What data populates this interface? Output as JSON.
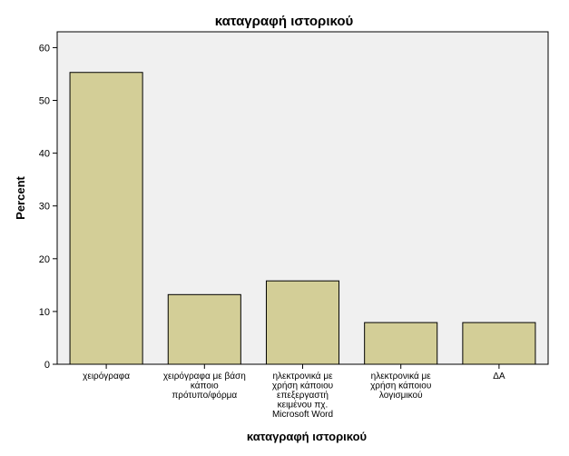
{
  "chart_data": {
    "type": "bar",
    "title": "καταγραφή ιστορικού",
    "xlabel": "καταγραφή ιστορικού",
    "ylabel": "Percent",
    "ylim": [
      0,
      63
    ],
    "yticks": [
      0,
      10,
      20,
      30,
      40,
      50,
      60
    ],
    "grid": false,
    "categories": [
      [
        "χειρόγραφα"
      ],
      [
        "χειρόγραφα με βάση",
        "κάποιο",
        "πρότυπο/φόρμα"
      ],
      [
        "ηλεκτρονικά με",
        "χρήση κάποιου",
        "επεξεργαστή",
        "κειμένου πχ.",
        "Microsoft Word"
      ],
      [
        "ηλεκτρονικά με",
        "χρήση κάποιου",
        "λογισμικού"
      ],
      [
        "ΔΑ"
      ]
    ],
    "values": [
      55.3,
      13.2,
      15.8,
      7.9,
      7.9
    ],
    "colors": {
      "bar": "#d3ce97",
      "plot_background": "#f0f0f0",
      "stroke": "#000000"
    }
  }
}
